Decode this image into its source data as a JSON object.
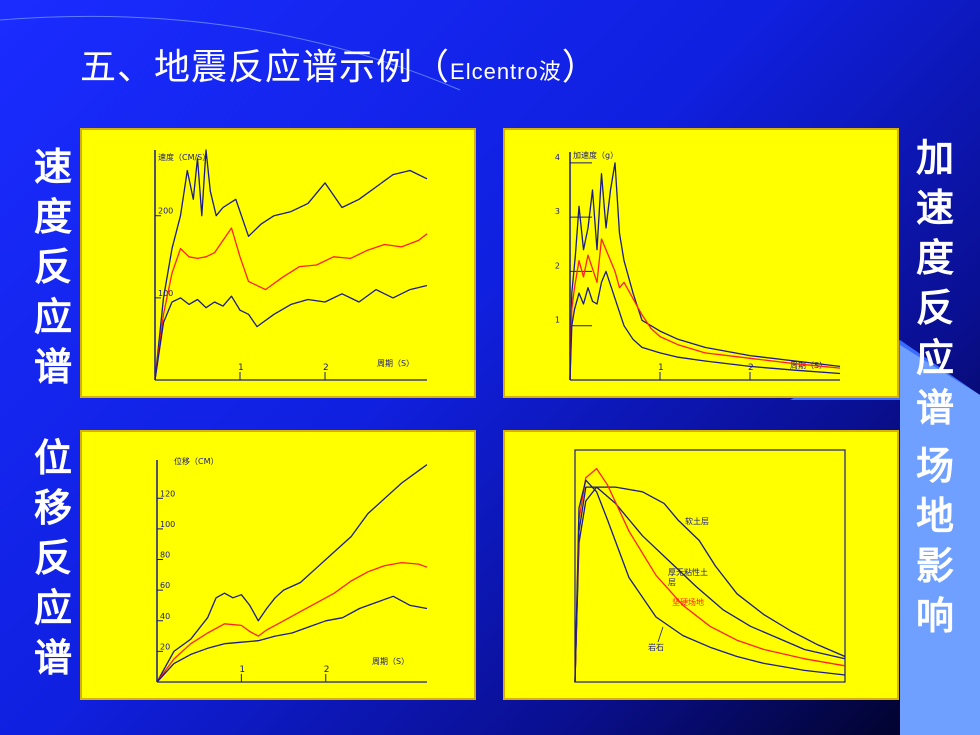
{
  "title": {
    "main": "五、地震反应谱示例（",
    "sub": "Elcentro波",
    "end": "）"
  },
  "side_labels": {
    "top_left": "速度反应谱",
    "bottom_left": "位移反应谱",
    "top_right": "加速度反应谱",
    "bottom_right": "场地影响"
  },
  "colors": {
    "background": "#1a2cff",
    "panel": "#ffff00",
    "curve_main": "#1a1a8a",
    "curve_red": "#ff2020"
  },
  "chart_data": [
    {
      "type": "line",
      "ylabel": "速度（CM/S）",
      "xlabel": "周期（S）",
      "xticks": [
        "1",
        "2"
      ],
      "yticks": [
        "100",
        "200"
      ],
      "xlim": [
        0,
        3.2
      ],
      "ylim": [
        0,
        280
      ],
      "series": [
        {
          "color": "#1a1a8a",
          "x": [
            0,
            0.1,
            0.2,
            0.3,
            0.38,
            0.45,
            0.5,
            0.55,
            0.6,
            0.65,
            0.72,
            0.8,
            0.95,
            1.1,
            1.25,
            1.4,
            1.6,
            1.8,
            2.0,
            2.2,
            2.4,
            2.6,
            2.8,
            3.0,
            3.2
          ],
          "y": [
            0,
            100,
            160,
            200,
            255,
            220,
            270,
            200,
            280,
            230,
            200,
            210,
            220,
            175,
            190,
            200,
            205,
            215,
            240,
            210,
            220,
            235,
            250,
            255,
            245
          ]
        },
        {
          "color": "#ff2020",
          "x": [
            0,
            0.1,
            0.2,
            0.3,
            0.4,
            0.5,
            0.6,
            0.7,
            0.8,
            0.9,
            1.0,
            1.1,
            1.3,
            1.5,
            1.7,
            1.9,
            2.1,
            2.3,
            2.5,
            2.7,
            2.9,
            3.1,
            3.2
          ],
          "y": [
            0,
            80,
            130,
            160,
            150,
            148,
            150,
            155,
            170,
            185,
            150,
            120,
            110,
            125,
            138,
            140,
            150,
            148,
            158,
            165,
            162,
            170,
            178
          ]
        },
        {
          "color": "#1a1a8a",
          "x": [
            0,
            0.1,
            0.2,
            0.3,
            0.4,
            0.5,
            0.6,
            0.7,
            0.8,
            0.9,
            1.0,
            1.1,
            1.2,
            1.4,
            1.6,
            1.8,
            2.0,
            2.2,
            2.4,
            2.6,
            2.8,
            3.0,
            3.2
          ],
          "y": [
            0,
            70,
            95,
            100,
            92,
            98,
            88,
            95,
            90,
            102,
            85,
            80,
            65,
            80,
            92,
            98,
            95,
            105,
            95,
            110,
            100,
            110,
            115
          ]
        }
      ]
    },
    {
      "type": "line",
      "ylabel": "加速度（g）",
      "xlabel": "周期（S）",
      "xticks": [
        "1",
        "2"
      ],
      "yticks": [
        "1",
        "2",
        "3",
        "4"
      ],
      "xlim": [
        0,
        3.0
      ],
      "ylim": [
        0,
        4.2
      ],
      "series": [
        {
          "color": "#1a1a8a",
          "x": [
            0,
            0.02,
            0.06,
            0.1,
            0.15,
            0.2,
            0.25,
            0.3,
            0.35,
            0.4,
            0.45,
            0.5,
            0.55,
            0.6,
            0.7,
            0.8,
            1.0,
            1.2,
            1.5,
            2.0,
            2.5,
            3.0
          ],
          "y": [
            0,
            1.6,
            2.3,
            3.2,
            2.4,
            2.8,
            3.5,
            2.4,
            3.8,
            2.8,
            3.5,
            4.0,
            2.7,
            2.2,
            1.6,
            1.1,
            0.9,
            0.75,
            0.6,
            0.45,
            0.35,
            0.25
          ]
        },
        {
          "color": "#ff2020",
          "x": [
            0,
            0.02,
            0.05,
            0.1,
            0.15,
            0.2,
            0.3,
            0.35,
            0.4,
            0.5,
            0.55,
            0.6,
            0.7,
            0.8,
            0.9,
            1.0,
            1.2,
            1.5,
            2.0,
            2.5,
            3.0
          ],
          "y": [
            0,
            1.3,
            1.7,
            2.2,
            1.9,
            2.3,
            1.8,
            2.6,
            2.4,
            2.0,
            1.7,
            1.8,
            1.5,
            1.2,
            0.95,
            0.8,
            0.65,
            0.5,
            0.4,
            0.3,
            0.22
          ]
        },
        {
          "color": "#1a1a8a",
          "x": [
            0,
            0.02,
            0.05,
            0.1,
            0.15,
            0.2,
            0.25,
            0.3,
            0.35,
            0.4,
            0.5,
            0.6,
            0.7,
            0.8,
            1.0,
            1.2,
            1.5,
            2.0,
            2.5,
            3.0
          ],
          "y": [
            0,
            1.0,
            1.3,
            1.6,
            1.4,
            1.7,
            1.45,
            1.4,
            1.8,
            2.0,
            1.5,
            1.0,
            0.75,
            0.6,
            0.5,
            0.42,
            0.35,
            0.25,
            0.18,
            0.12
          ]
        }
      ]
    },
    {
      "type": "line",
      "ylabel": "位移（CM）",
      "xlabel": "周期（S）",
      "xticks": [
        "1",
        "2"
      ],
      "yticks": [
        "20",
        "40",
        "60",
        "80",
        "100",
        "120"
      ],
      "xlim": [
        0,
        3.2
      ],
      "ylim": [
        0,
        145
      ],
      "series": [
        {
          "color": "#1a1a8a",
          "x": [
            0,
            0.2,
            0.4,
            0.5,
            0.6,
            0.7,
            0.8,
            0.9,
            1.0,
            1.1,
            1.2,
            1.3,
            1.4,
            1.5,
            1.7,
            1.9,
            2.1,
            2.3,
            2.5,
            2.7,
            2.9,
            3.1,
            3.2
          ],
          "y": [
            0,
            20,
            28,
            35,
            42,
            55,
            58,
            55,
            57,
            50,
            40,
            48,
            55,
            60,
            65,
            75,
            85,
            95,
            110,
            120,
            130,
            138,
            142
          ]
        },
        {
          "color": "#ff2020",
          "x": [
            0,
            0.2,
            0.4,
            0.6,
            0.8,
            1.0,
            1.1,
            1.2,
            1.3,
            1.5,
            1.7,
            1.9,
            2.1,
            2.3,
            2.5,
            2.7,
            2.9,
            3.1,
            3.2
          ],
          "y": [
            0,
            15,
            25,
            32,
            38,
            37,
            33,
            30,
            34,
            40,
            46,
            52,
            58,
            66,
            72,
            76,
            78,
            77,
            75
          ]
        },
        {
          "color": "#1a1a8a",
          "x": [
            0,
            0.2,
            0.4,
            0.6,
            0.8,
            1.0,
            1.2,
            1.4,
            1.6,
            1.8,
            2.0,
            2.2,
            2.4,
            2.6,
            2.8,
            3.0,
            3.2
          ],
          "y": [
            0,
            12,
            18,
            22,
            25,
            26,
            27,
            30,
            32,
            36,
            40,
            42,
            48,
            52,
            56,
            50,
            48
          ]
        }
      ]
    },
    {
      "type": "line",
      "xlim": [
        0,
        10
      ],
      "ylim": [
        0,
        10
      ],
      "annotations": [
        "软土层",
        "厚无粘性土层",
        "坚硬场地",
        "岩石"
      ],
      "series": [
        {
          "name": "软土层",
          "color": "#1a1a8a",
          "x": [
            0,
            0.15,
            0.4,
            0.8,
            1.5,
            2.5,
            3.3,
            3.8,
            4.6,
            5.2,
            6.0,
            7.0,
            8.0,
            9.0,
            10.0
          ],
          "y": [
            0,
            6.0,
            7.8,
            8.4,
            8.4,
            8.2,
            7.7,
            7.0,
            6.1,
            5.0,
            3.8,
            2.9,
            2.2,
            1.6,
            1.1
          ]
        },
        {
          "name": "厚无粘性土层",
          "color": "#1a1a8a",
          "x": [
            0,
            0.15,
            0.4,
            0.8,
            1.5,
            2.5,
            3.5,
            4.5,
            5.5,
            6.5,
            7.5,
            8.5,
            10.0
          ],
          "y": [
            0,
            6.5,
            8.4,
            8.4,
            7.7,
            6.3,
            5.2,
            4.1,
            3.1,
            2.4,
            1.9,
            1.4,
            1.0
          ]
        },
        {
          "name": "坚硬场地",
          "color": "#ff2020",
          "x": [
            0,
            0.15,
            0.4,
            0.8,
            1.2,
            2.0,
            3.0,
            4.0,
            5.0,
            6.0,
            7.0,
            8.5,
            10.0
          ],
          "y": [
            0,
            7.0,
            8.8,
            9.2,
            8.5,
            6.5,
            4.6,
            3.3,
            2.4,
            1.8,
            1.4,
            1.0,
            0.7
          ]
        },
        {
          "name": "岩石",
          "color": "#1a1a8a",
          "x": [
            0,
            0.15,
            0.4,
            0.8,
            1.2,
            2.0,
            3.0,
            4.0,
            5.0,
            6.0,
            7.0,
            8.5,
            10.0
          ],
          "y": [
            0,
            7.5,
            8.7,
            8.2,
            7.0,
            4.5,
            2.8,
            2.0,
            1.5,
            1.1,
            0.8,
            0.5,
            0.3
          ]
        }
      ]
    }
  ]
}
